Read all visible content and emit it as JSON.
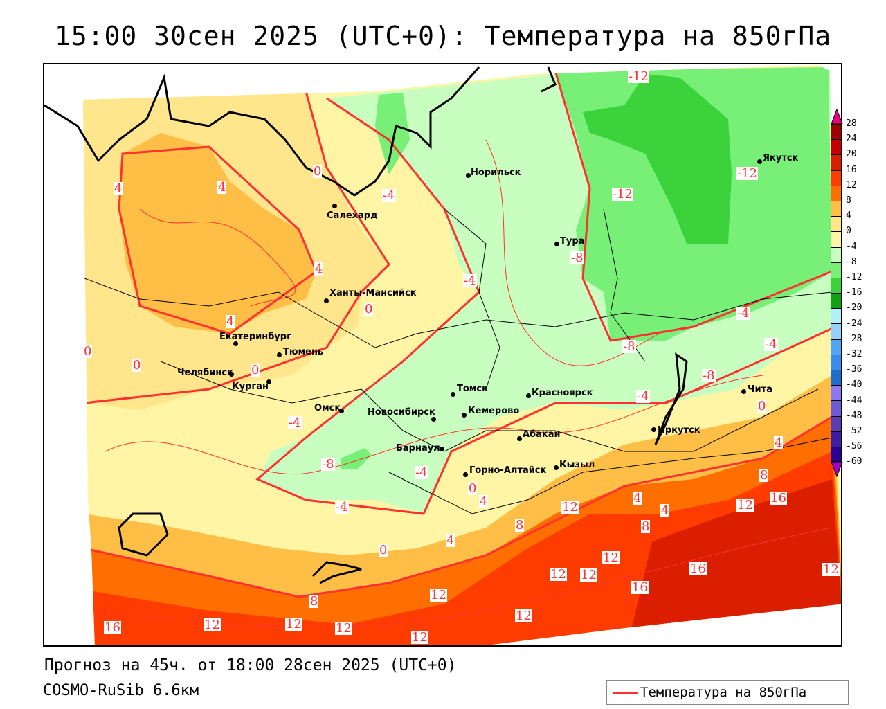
{
  "title": "15:00 30сен 2025 (UTC+0): Температура на 850гПа",
  "footer": {
    "forecast": "Прогноз на 45ч. от 18:00 28сен 2025 (UTC+0)",
    "model": "COSMO-RuSib 6.6км"
  },
  "legend": {
    "label": "Температура на 850гПа",
    "line_color": "#ff3030"
  },
  "colorbar": {
    "ticks": [
      "28",
      "24",
      "20",
      "16",
      "12",
      "8",
      "4",
      "0",
      "-4",
      "-8",
      "-12",
      "-16",
      "-20",
      "-24",
      "-28",
      "-32",
      "-36",
      "-40",
      "-44",
      "-48",
      "-52",
      "-56",
      "-60"
    ],
    "colors": [
      "#a00000",
      "#c40000",
      "#dc1e00",
      "#ff3c00",
      "#ff6e00",
      "#ffbe46",
      "#ffe68c",
      "#fff5a5",
      "#c8ffc0",
      "#78f078",
      "#3cd23c",
      "#14a014",
      "#b4f0fa",
      "#96d2fa",
      "#50a5f5",
      "#3c8cf0",
      "#1e6ed2",
      "#8c78f0",
      "#6e5ad2",
      "#5a3cb4",
      "#3c1ea0",
      "#280096"
    ],
    "top_arrow_color": "#e6007e",
    "bottom_arrow_color": "#a000c8"
  },
  "cities": [
    "Норильск",
    "Салехард",
    "Якутск",
    "Тура",
    "Ханты-Мансийск",
    "Екатеринбург",
    "Тюмень",
    "Челябинск",
    "Курган",
    "Омск",
    "Новосибирск",
    "Томск",
    "Кемерово",
    "Красноярск",
    "Абакан",
    "Барнаул",
    "Горно-Алтайск",
    "Кызыл",
    "Иркутск",
    "Чита"
  ],
  "contour_labels": [
    "-12",
    "-12",
    "-12",
    "4",
    "4",
    "0",
    "-4",
    "4",
    "-4",
    "-8",
    "0",
    "4",
    "0",
    "0",
    "0",
    "-4",
    "-8",
    "-8",
    "-4",
    "-4",
    "-8",
    "-4",
    "-4",
    "0",
    "0",
    "4",
    "8",
    "16",
    "12",
    "4",
    "0",
    "-4",
    "4",
    "8",
    "12",
    "8",
    "4",
    "12",
    "12",
    "12",
    "16",
    "12",
    "16",
    "4",
    "8",
    "12",
    "12",
    "12",
    "12",
    "16",
    "12",
    "12"
  ]
}
